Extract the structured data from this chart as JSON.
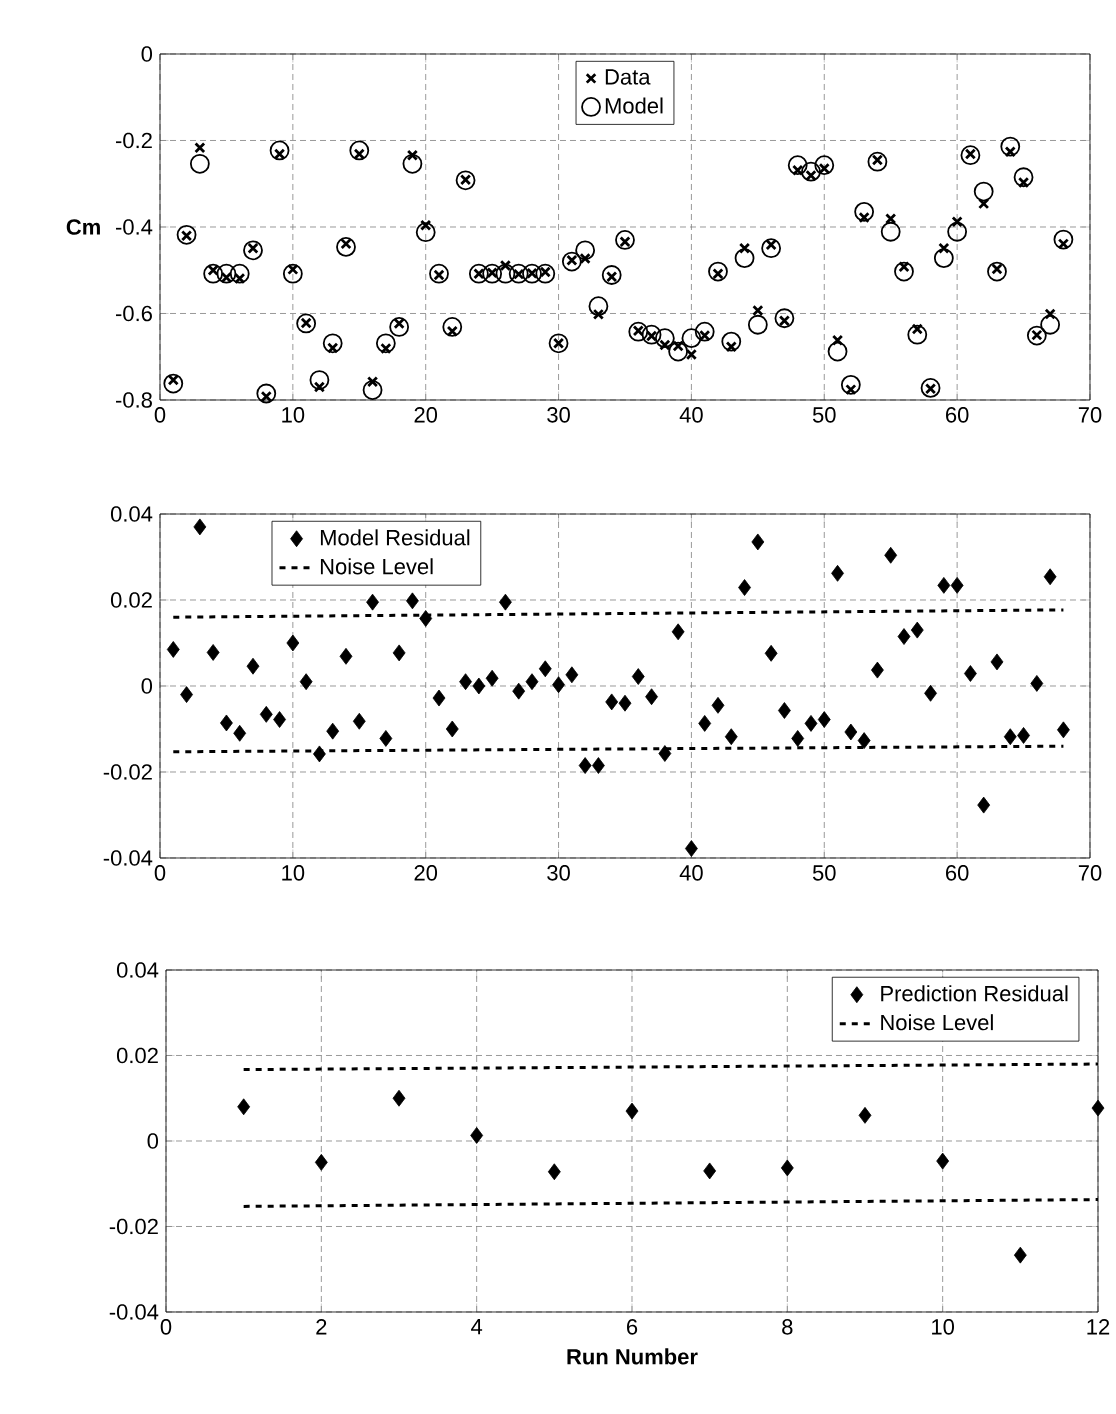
{
  "chart_data": [
    {
      "type": "scatter",
      "ylabel": "Cm",
      "xlim": [
        0,
        70
      ],
      "xticks": [
        0,
        10,
        20,
        30,
        40,
        50,
        60,
        70
      ],
      "ylim": [
        -0.8,
        0
      ],
      "yticks": [
        -0.8,
        -0.6,
        -0.4,
        -0.2,
        0
      ],
      "grid": true,
      "legend": "top",
      "x": [
        1,
        2,
        3,
        4,
        5,
        6,
        7,
        8,
        9,
        10,
        11,
        12,
        13,
        14,
        15,
        16,
        17,
        18,
        19,
        20,
        21,
        22,
        23,
        24,
        25,
        26,
        27,
        28,
        29,
        30,
        31,
        32,
        33,
        34,
        35,
        36,
        37,
        38,
        39,
        40,
        41,
        42,
        43,
        44,
        45,
        46,
        47,
        48,
        49,
        50,
        51,
        52,
        53,
        54,
        55,
        56,
        57,
        58,
        59,
        60,
        61,
        62,
        63,
        64,
        65,
        66,
        67,
        68
      ],
      "series": [
        {
          "name": "Data",
          "color": "#000000",
          "marker": "cross",
          "values": [
            -0.754,
            -0.42,
            -0.217,
            -0.5,
            -0.517,
            -0.519,
            -0.449,
            -0.792,
            -0.231,
            -0.498,
            -0.622,
            -0.77,
            -0.68,
            -0.439,
            -0.231,
            -0.758,
            -0.681,
            -0.623,
            -0.234,
            -0.396,
            -0.511,
            -0.641,
            -0.291,
            -0.508,
            -0.506,
            -0.489,
            -0.509,
            -0.507,
            -0.504,
            -0.669,
            -0.477,
            -0.473,
            -0.602,
            -0.515,
            -0.434,
            -0.64,
            -0.652,
            -0.673,
            -0.675,
            -0.695,
            -0.651,
            -0.508,
            -0.677,
            -0.449,
            -0.593,
            -0.441,
            -0.617,
            -0.269,
            -0.281,
            -0.265,
            -0.662,
            -0.776,
            -0.378,
            -0.245,
            -0.381,
            -0.492,
            -0.636,
            -0.774,
            -0.449,
            -0.388,
            -0.231,
            -0.346,
            -0.497,
            -0.226,
            -0.297,
            -0.65,
            -0.601,
            -0.439
          ]
        },
        {
          "name": "Model",
          "color": "#000000",
          "marker": "circle",
          "values": [
            -0.762,
            -0.418,
            -0.254,
            -0.508,
            -0.508,
            -0.508,
            -0.454,
            -0.785,
            -0.223,
            -0.508,
            -0.623,
            -0.754,
            -0.669,
            -0.446,
            -0.223,
            -0.777,
            -0.669,
            -0.631,
            -0.254,
            -0.412,
            -0.508,
            -0.631,
            -0.292,
            -0.508,
            -0.508,
            -0.508,
            -0.508,
            -0.508,
            -0.508,
            -0.669,
            -0.48,
            -0.454,
            -0.583,
            -0.511,
            -0.43,
            -0.642,
            -0.649,
            -0.657,
            -0.688,
            -0.657,
            -0.642,
            -0.503,
            -0.665,
            -0.472,
            -0.626,
            -0.449,
            -0.611,
            -0.257,
            -0.272,
            -0.257,
            -0.688,
            -0.765,
            -0.365,
            -0.249,
            -0.411,
            -0.503,
            -0.649,
            -0.772,
            -0.472,
            -0.411,
            -0.234,
            -0.318,
            -0.503,
            -0.214,
            -0.285,
            -0.651,
            -0.626,
            -0.429
          ]
        }
      ]
    },
    {
      "type": "scatter",
      "xlim": [
        0,
        70
      ],
      "xticks": [
        0,
        10,
        20,
        30,
        40,
        50,
        60,
        70
      ],
      "ylim": [
        -0.04,
        0.04
      ],
      "yticks": [
        -0.04,
        -0.02,
        0,
        0.02,
        0.04
      ],
      "grid": true,
      "legend": "top left",
      "series": [
        {
          "name": "Model Residual",
          "color": "#000000",
          "marker": "diamond",
          "x": [
            1,
            2,
            3,
            4,
            5,
            6,
            7,
            8,
            9,
            10,
            11,
            12,
            13,
            14,
            15,
            16,
            17,
            18,
            19,
            20,
            21,
            22,
            23,
            24,
            25,
            26,
            27,
            28,
            29,
            30,
            31,
            32,
            33,
            34,
            35,
            36,
            37,
            38,
            39,
            40,
            41,
            42,
            43,
            44,
            45,
            46,
            47,
            48,
            49,
            50,
            51,
            52,
            53,
            54,
            55,
            56,
            57,
            58,
            59,
            60,
            61,
            62,
            63,
            64,
            65,
            66,
            67,
            68
          ],
          "values": [
            0.0085,
            -0.002,
            0.037,
            0.0078,
            -0.0086,
            -0.011,
            0.0046,
            -0.0066,
            -0.0078,
            0.01,
            0.001,
            -0.0158,
            -0.0105,
            0.0069,
            -0.0082,
            0.0195,
            -0.0122,
            0.0077,
            0.0198,
            0.0157,
            -0.0028,
            -0.01,
            0.001,
            0,
            0.0018,
            0.0195,
            -0.0012,
            0.001,
            0.004,
            0.0003,
            0.0026,
            -0.0185,
            -0.0185,
            -0.0037,
            -0.004,
            0.0022,
            -0.0025,
            -0.0157,
            0.0126,
            -0.0378,
            -0.0087,
            -0.0045,
            -0.0118,
            0.0229,
            0.0335,
            0.0076,
            -0.0057,
            -0.0122,
            -0.0087,
            -0.0078,
            0.0262,
            -0.0107,
            -0.0127,
            0.0037,
            0.0304,
            0.0115,
            0.013,
            -0.0017,
            0.0234,
            0.0234,
            0.0029,
            -0.0277,
            0.0056,
            -0.0118,
            -0.0115,
            0.0006,
            0.0254,
            -0.0102
          ]
        },
        {
          "name": "Noise Level",
          "type": "line",
          "color": "#000000",
          "marker": "none",
          "line_style": "dashed",
          "x": [
            1,
            68
          ],
          "values": [
            0.016,
            0.0177
          ]
        },
        {
          "type": "line",
          "color": "#000000",
          "marker": "none",
          "line_style": "dashed",
          "x": [
            1,
            68
          ],
          "values": [
            -0.0153,
            -0.014
          ]
        }
      ]
    },
    {
      "type": "scatter",
      "xlabel": "Run Number",
      "xlim": [
        0,
        12
      ],
      "xticks": [
        0,
        2,
        4,
        6,
        8,
        10,
        12
      ],
      "ylim": [
        -0.04,
        0.04
      ],
      "yticks": [
        -0.04,
        -0.02,
        0,
        0.02,
        0.04
      ],
      "grid": true,
      "legend": "top right",
      "series": [
        {
          "name": "Prediction Residual",
          "color": "#000000",
          "marker": "diamond",
          "x": [
            1,
            2,
            3,
            4,
            5,
            6,
            7,
            8,
            9,
            10,
            11,
            12
          ],
          "values": [
            0.008,
            -0.005,
            0.01,
            0.0013,
            -0.0072,
            0.007,
            -0.007,
            -0.0063,
            0.006,
            -0.0047,
            -0.0267,
            0.0077
          ]
        },
        {
          "name": "Noise Level",
          "type": "line",
          "color": "#000000",
          "marker": "none",
          "line_style": "dashed",
          "x": [
            1,
            12
          ],
          "values": [
            0.0167,
            0.018
          ]
        },
        {
          "type": "line",
          "color": "#000000",
          "marker": "none",
          "line_style": "dashed",
          "x": [
            1,
            12
          ],
          "values": [
            -0.0153,
            -0.0137
          ]
        }
      ]
    }
  ]
}
